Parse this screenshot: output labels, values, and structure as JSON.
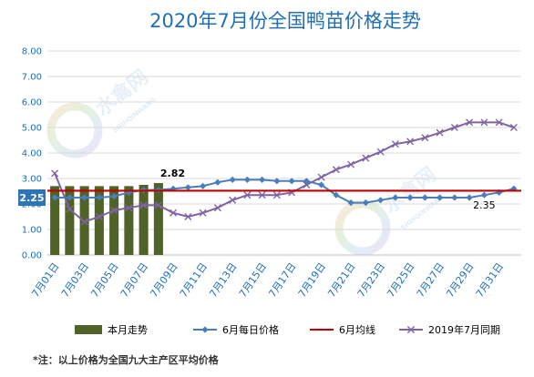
{
  "chart_data": {
    "type": "combo",
    "title": "2020年7月份全国鸭苗价格走势",
    "note": "*注：以上价格为全国九大主产区平均价格",
    "ylim": [
      0,
      8
    ],
    "y_ticks": [
      "0.00",
      "1.00",
      "2.00",
      "3.00",
      "4.00",
      "5.00",
      "6.00",
      "7.00",
      "8.00"
    ],
    "x_ticks": [
      "7月01日",
      "7月03日",
      "7月05日",
      "7月07日",
      "7月09日",
      "7月11日",
      "7月13日",
      "7月15日",
      "7月17日",
      "7月19日",
      "7月21日",
      "7月23日",
      "7月25日",
      "7月27日",
      "7月29日",
      "7月31日"
    ],
    "grid": "horizontal",
    "legend_position": "bottom",
    "series": [
      {
        "name": "本月走势",
        "type": "bar",
        "color": "#4f6228",
        "values": [
          2.7,
          2.7,
          2.7,
          2.7,
          2.7,
          2.7,
          2.75,
          2.82
        ]
      },
      {
        "name": "6月每日价格",
        "type": "line",
        "marker": "diamond",
        "color": "#4a7ebb",
        "values": [
          2.25,
          2.25,
          2.25,
          2.25,
          2.3,
          2.45,
          2.55,
          2.55,
          2.6,
          2.65,
          2.7,
          2.85,
          2.95,
          2.95,
          2.95,
          2.9,
          2.9,
          2.9,
          2.75,
          2.35,
          2.05,
          2.05,
          2.15,
          2.25,
          2.25,
          2.25,
          2.25,
          2.25,
          2.25,
          2.35,
          2.45,
          2.6
        ]
      },
      {
        "name": "6月均线",
        "type": "line",
        "color": "#c00000",
        "values": [
          2.52,
          2.52,
          2.52,
          2.52,
          2.52,
          2.52,
          2.52,
          2.52,
          2.52,
          2.52,
          2.52,
          2.52,
          2.52,
          2.52,
          2.52,
          2.52,
          2.52,
          2.52,
          2.52,
          2.52,
          2.52,
          2.52,
          2.52,
          2.52,
          2.52,
          2.52,
          2.52,
          2.52,
          2.52,
          2.52,
          2.52,
          2.52
        ]
      },
      {
        "name": "2019年7月同期",
        "type": "line",
        "marker": "x",
        "color": "#8064a2",
        "values": [
          3.2,
          1.8,
          1.3,
          1.5,
          1.75,
          1.85,
          1.95,
          1.95,
          1.65,
          1.5,
          1.65,
          1.85,
          2.15,
          2.35,
          2.35,
          2.35,
          2.45,
          2.75,
          3.05,
          3.35,
          3.55,
          3.8,
          4.05,
          4.35,
          4.45,
          4.6,
          4.8,
          5.0,
          5.2,
          5.2,
          5.2,
          5.0
        ]
      }
    ],
    "data_labels": [
      {
        "text": "2.82",
        "series": "本月走势",
        "index": 7
      },
      {
        "text": "2.25",
        "series": "6月每日价格",
        "index": 0
      },
      {
        "text": "2.35",
        "series": "6月每日价格",
        "index": 29
      }
    ]
  },
  "watermark": {
    "brand": "水禽网",
    "pinyin": "SHUIQINWANG"
  }
}
